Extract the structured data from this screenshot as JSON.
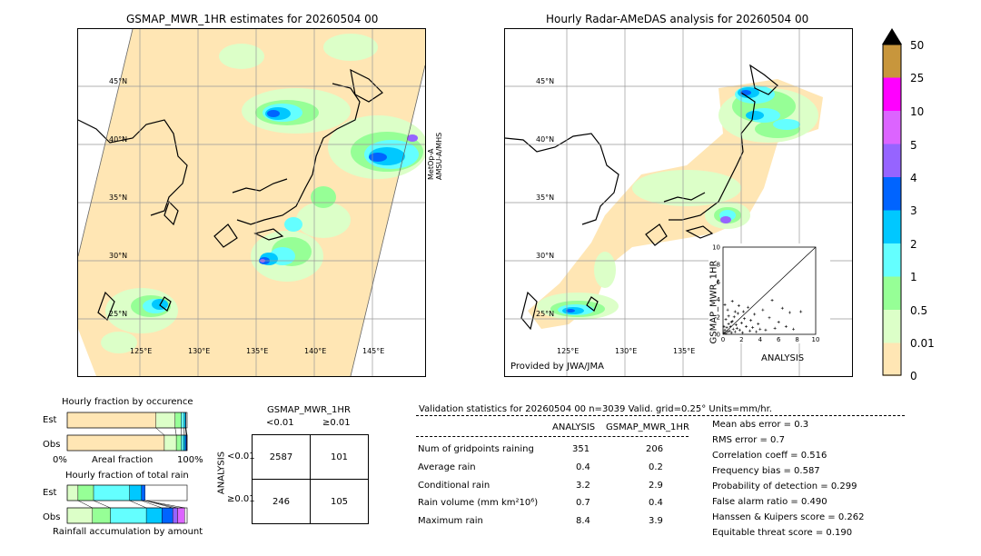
{
  "left_map": {
    "title": "GSMAP_MWR_1HR estimates for 20260504 00",
    "sat_label_1": "MetOp-A",
    "sat_label_2": "AMSU-A/MHS",
    "lat_labels": [
      "45°N",
      "40°N",
      "35°N",
      "30°N",
      "25°N"
    ],
    "lon_labels": [
      "125°E",
      "130°E",
      "135°E",
      "140°E",
      "145°E"
    ]
  },
  "right_map": {
    "title": "Hourly Radar-AMeDAS analysis for 20260504 00",
    "credit": "Provided by JWA/JMA",
    "lat_labels": [
      "45°N",
      "40°N",
      "35°N",
      "30°N",
      "25°N"
    ],
    "lon_labels": [
      "125°E",
      "130°E",
      "135°E"
    ]
  },
  "colorbar": {
    "labels": [
      "50",
      "25",
      "10",
      "5",
      "4",
      "3",
      "2",
      "1",
      "0.5",
      "0.01",
      "0"
    ],
    "colors": [
      "#c8963c",
      "#ff00ff",
      "#dc64ff",
      "#9664ff",
      "#0064ff",
      "#00c8ff",
      "#64ffff",
      "#96ff96",
      "#dcffc8",
      "#ffe6b4"
    ]
  },
  "chart_data": [
    {
      "type": "scatter",
      "xlabel": "ANALYSIS",
      "ylabel": "GSMAP_MWR_1HR",
      "xlim": [
        0,
        10
      ],
      "ylim": [
        0,
        10
      ],
      "xticks": [
        "0",
        "2",
        "4",
        "6",
        "8",
        "10"
      ],
      "yticks": [
        "0",
        "2",
        "4",
        "6",
        "8",
        "10"
      ],
      "points": [
        [
          0.1,
          0.2
        ],
        [
          0.2,
          0.5
        ],
        [
          0.3,
          0.1
        ],
        [
          0.4,
          0.8
        ],
        [
          0.5,
          0.3
        ],
        [
          0.6,
          1.2
        ],
        [
          0.7,
          0.4
        ],
        [
          0.8,
          0.9
        ],
        [
          0.9,
          0.2
        ],
        [
          1.0,
          1.5
        ],
        [
          1.1,
          0.6
        ],
        [
          1.2,
          2.0
        ],
        [
          1.3,
          0.3
        ],
        [
          1.4,
          1.1
        ],
        [
          1.5,
          0.7
        ],
        [
          1.6,
          2.4
        ],
        [
          1.8,
          0.5
        ],
        [
          2.0,
          1.3
        ],
        [
          2.1,
          0.2
        ],
        [
          2.3,
          1.8
        ],
        [
          2.5,
          0.9
        ],
        [
          2.7,
          3.1
        ],
        [
          2.9,
          0.4
        ],
        [
          3.0,
          1.6
        ],
        [
          3.2,
          0.8
        ],
        [
          3.4,
          2.3
        ],
        [
          3.6,
          0.3
        ],
        [
          3.8,
          1.2
        ],
        [
          4.0,
          0.6
        ],
        [
          4.3,
          2.8
        ],
        [
          4.6,
          0.5
        ],
        [
          5.0,
          1.9
        ],
        [
          5.3,
          3.9
        ],
        [
          5.6,
          0.7
        ],
        [
          6.0,
          1.4
        ],
        [
          6.4,
          3.0
        ],
        [
          6.8,
          0.9
        ],
        [
          7.2,
          2.5
        ],
        [
          7.6,
          0.6
        ],
        [
          8.4,
          2.6
        ],
        [
          0.2,
          3.4
        ],
        [
          0.5,
          2.8
        ],
        [
          0.3,
          1.7
        ],
        [
          1.0,
          3.8
        ],
        [
          1.7,
          3.3
        ],
        [
          2.2,
          2.6
        ],
        [
          0.1,
          0.9
        ],
        [
          0.6,
          2.1
        ],
        [
          0.9,
          1.4
        ],
        [
          1.3,
          2.6
        ]
      ]
    },
    {
      "type": "bar",
      "title": "Hourly fraction by occurence",
      "categories": [
        "Est",
        "Obs"
      ],
      "xlabel": "Areal fraction",
      "x_min_label": "0%",
      "x_max_label": "100%",
      "series": [
        {
          "color": "#ffe6b4",
          "values": [
            0.74,
            0.81
          ]
        },
        {
          "color": "#dcffc8",
          "values": [
            0.16,
            0.1
          ]
        },
        {
          "color": "#96ff96",
          "values": [
            0.05,
            0.04
          ]
        },
        {
          "color": "#64ffff",
          "values": [
            0.025,
            0.02
          ]
        },
        {
          "color": "#00c8ff",
          "values": [
            0.012,
            0.015
          ]
        },
        {
          "color": "#0064ff",
          "values": [
            0.003,
            0.01
          ]
        },
        {
          "color": "#9664ff",
          "values": [
            0.0,
            0.005
          ]
        }
      ]
    },
    {
      "type": "bar",
      "title": "Hourly fraction of total rain",
      "categories": [
        "Est",
        "Obs"
      ],
      "xlabel": "Rainfall accumulation by amount",
      "series": [
        {
          "color": "#dcffc8",
          "values": [
            0.09,
            0.21
          ]
        },
        {
          "color": "#96ff96",
          "values": [
            0.13,
            0.15
          ]
        },
        {
          "color": "#64ffff",
          "values": [
            0.3,
            0.3
          ]
        },
        {
          "color": "#00c8ff",
          "values": [
            0.1,
            0.13
          ]
        },
        {
          "color": "#0064ff",
          "values": [
            0.03,
            0.09
          ]
        },
        {
          "color": "#9664ff",
          "values": [
            0.0,
            0.04
          ]
        },
        {
          "color": "#dc64ff",
          "values": [
            0.0,
            0.06
          ]
        }
      ]
    },
    {
      "type": "table",
      "title": "GSMAP_MWR_1HR",
      "col_labels": [
        "<0.01",
        "≥0.01"
      ],
      "row_axis_label": "ANALYSIS",
      "row_labels": [
        "<0.01",
        "≥0.01"
      ],
      "cells": [
        [
          "2587",
          "101"
        ],
        [
          "246",
          "105"
        ]
      ]
    }
  ],
  "validation": {
    "header": "Validation statistics for 20260504 00  n=3039 Valid. grid=0.25° Units=mm/hr.",
    "col_analysis": "ANALYSIS",
    "col_gsmap": "GSMAP_MWR_1HR",
    "rows": [
      {
        "label": "Num of gridpoints raining",
        "analysis": "351",
        "gsmap": "206"
      },
      {
        "label": "Average rain",
        "analysis": "0.4",
        "gsmap": "0.2"
      },
      {
        "label": "Conditional rain",
        "analysis": "3.2",
        "gsmap": "2.9"
      },
      {
        "label": "Rain volume (mm km²10⁶)",
        "analysis": "0.7",
        "gsmap": "0.4"
      },
      {
        "label": "Maximum rain",
        "analysis": "8.4",
        "gsmap": "3.9"
      }
    ],
    "scores": [
      "Mean abs error =    0.3",
      "RMS error =    0.7",
      "Correlation coeff =  0.516",
      "Frequency bias =  0.587",
      "Probability of detection =  0.299",
      "False alarm ratio =  0.490",
      "Hanssen & Kuipers score =  0.262",
      "Equitable threat score =  0.190"
    ]
  }
}
